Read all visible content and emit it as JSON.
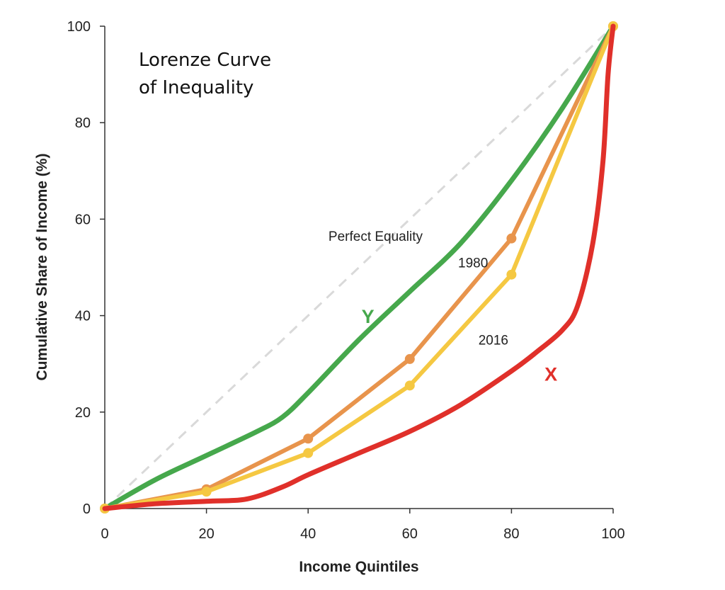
{
  "chart_data": {
    "type": "line",
    "title": "Lorenze Curve",
    "subtitle": "of Inequality",
    "xlabel": "Income Quintiles",
    "ylabel": "Cumulative Share of Income (%)",
    "xlim": [
      0,
      100
    ],
    "ylim": [
      0,
      100
    ],
    "xticks": [
      "0",
      "20",
      "40",
      "60",
      "80",
      "100"
    ],
    "yticks": [
      "0",
      "20",
      "40",
      "60",
      "80",
      "100"
    ],
    "grid": false,
    "legend": "none",
    "series": [
      {
        "name": "Perfect Equality",
        "style": "dashed",
        "color": "#d9d9d9",
        "x": [
          0,
          100
        ],
        "y": [
          0,
          100
        ]
      },
      {
        "name": "Y",
        "color": "#46a84c",
        "x": [
          0,
          10,
          20,
          30,
          35,
          40,
          50,
          60,
          70,
          80,
          90,
          100
        ],
        "y": [
          0,
          6,
          11,
          16,
          19,
          24,
          35,
          45,
          55,
          68,
          83,
          100
        ]
      },
      {
        "name": "1980",
        "color": "#e8944c",
        "markers": true,
        "x": [
          0,
          20,
          40,
          60,
          80,
          100
        ],
        "y": [
          0,
          4,
          14.5,
          31,
          56,
          100
        ]
      },
      {
        "name": "2016",
        "color": "#f5c842",
        "markers": true,
        "x": [
          0,
          20,
          40,
          60,
          80,
          100
        ],
        "y": [
          0,
          3.5,
          11.5,
          25.5,
          48.5,
          100
        ]
      },
      {
        "name": "X",
        "color": "#e0302a",
        "x": [
          0,
          10,
          20,
          28,
          35,
          40,
          50,
          60,
          70,
          80,
          85,
          90,
          93,
          96,
          98,
          99,
          100
        ],
        "y": [
          0,
          1,
          1.5,
          2,
          4.5,
          7,
          11.5,
          16,
          21.5,
          28.5,
          32.5,
          37,
          42,
          55,
          72,
          90,
          100
        ]
      }
    ],
    "annotations": [
      {
        "text": "Perfect Equality",
        "x": 44,
        "y": 55.5,
        "size": "small",
        "color": "#222222"
      },
      {
        "text": "1980",
        "x": 69.5,
        "y": 50,
        "size": "small",
        "color": "#222222"
      },
      {
        "text": "2016",
        "x": 73.5,
        "y": 34,
        "size": "small",
        "color": "#222222"
      },
      {
        "text": "Y",
        "x": 50.5,
        "y": 38.5,
        "size": "big",
        "color": "#46a84c"
      },
      {
        "text": "X",
        "x": 86.5,
        "y": 26.5,
        "size": "big",
        "color": "#e0302a"
      }
    ]
  }
}
